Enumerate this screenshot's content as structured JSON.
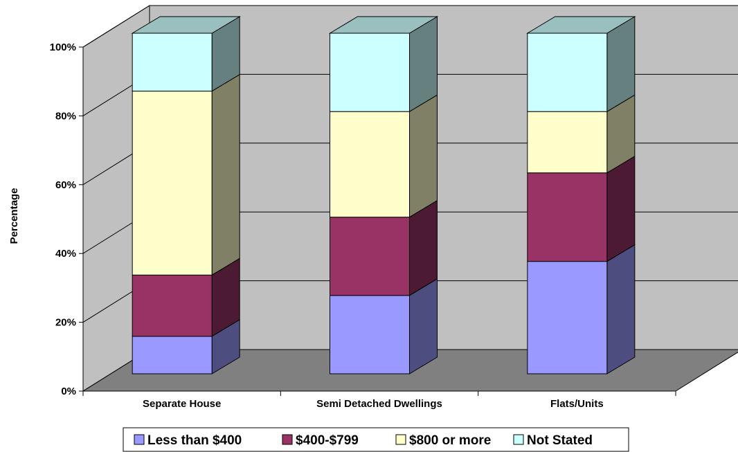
{
  "chart_data": {
    "type": "bar",
    "stacked": true,
    "percent_stacked": true,
    "three_d": true,
    "title": "",
    "xlabel": "",
    "ylabel": "Percentage",
    "ylim": [
      0,
      100
    ],
    "y_ticks": [
      "0%",
      "20%",
      "40%",
      "60%",
      "80%",
      "100%"
    ],
    "grid": true,
    "legend_position": "bottom",
    "categories": [
      "Separate House",
      "Semi Detached Dwellings",
      "Flats/Units"
    ],
    "series": [
      {
        "name": "Less than $400",
        "values": [
          11,
          23,
          33
        ],
        "color": "#9999ff"
      },
      {
        "name": "$400-$799",
        "values": [
          18,
          23,
          26
        ],
        "color": "#993366"
      },
      {
        "name": "$800 or more",
        "values": [
          54,
          31,
          18
        ],
        "color": "#ffffcc"
      },
      {
        "name": "Not Stated",
        "values": [
          17,
          23,
          23
        ],
        "color": "#ccffff"
      }
    ],
    "colors": {
      "wall": "#c0c0c0",
      "floor": "#808080",
      "gridline": "#000000"
    }
  }
}
